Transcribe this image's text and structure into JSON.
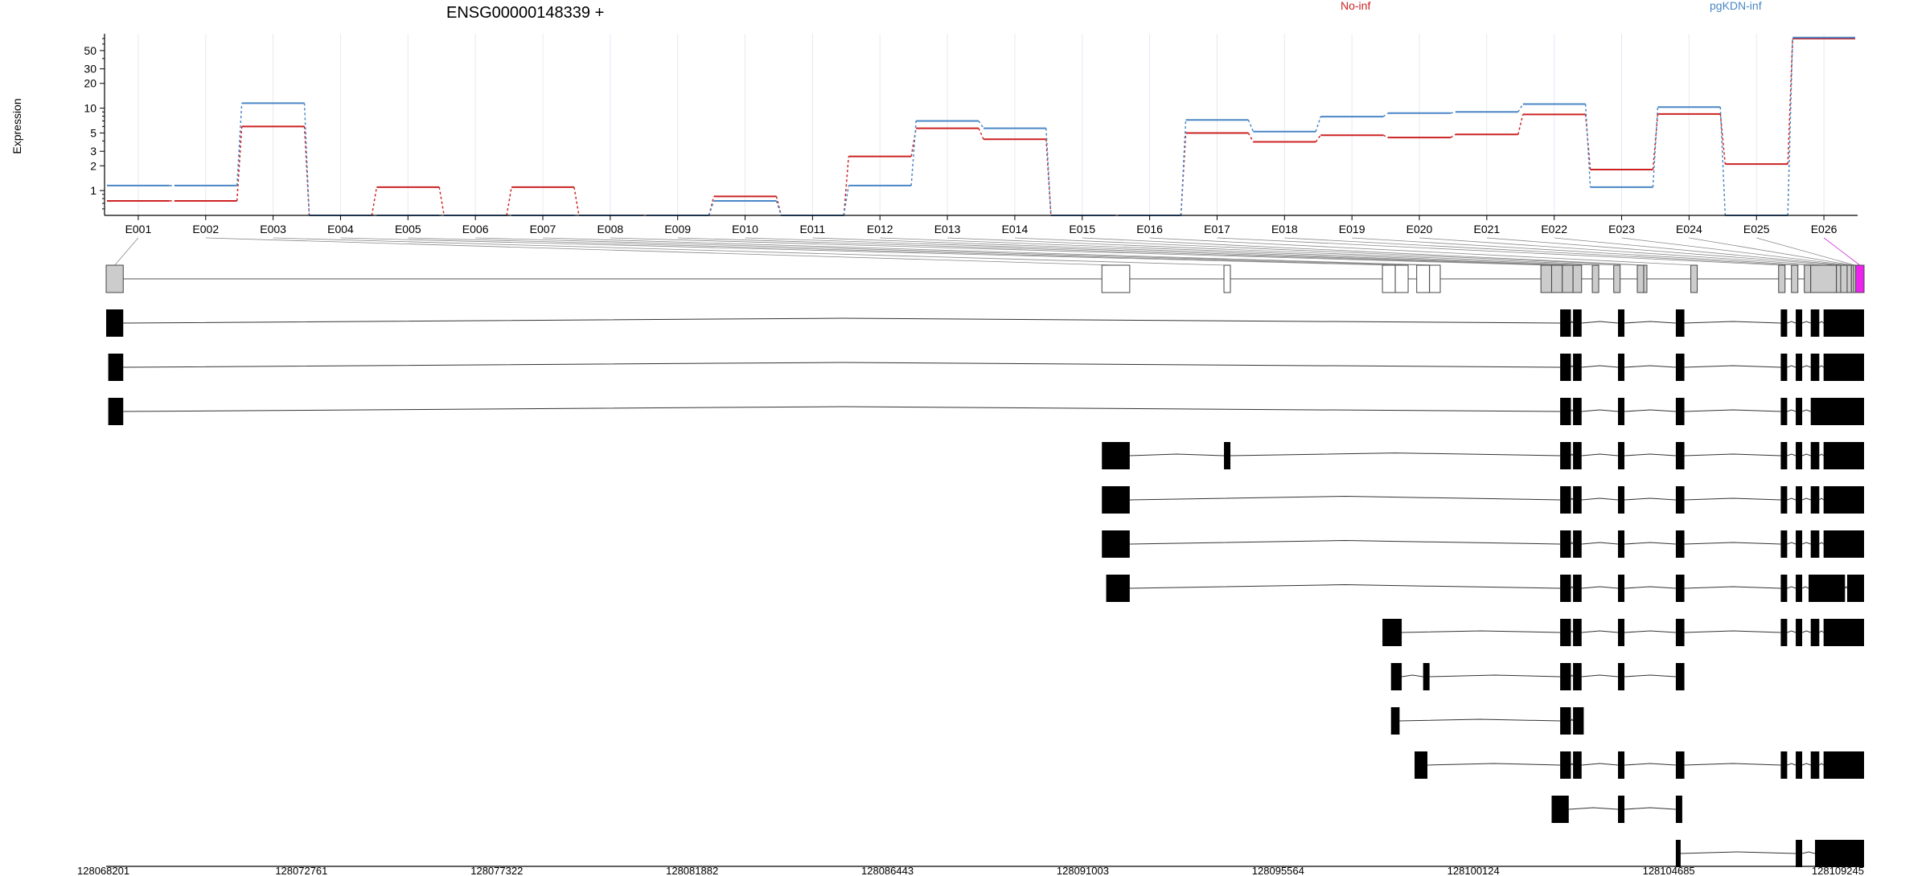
{
  "chart_data": {
    "type": "line",
    "title": "ENSG00000148339 +",
    "ylabel": "Expression",
    "y_scale": "log",
    "y_ticks": [
      "1",
      "2",
      "3",
      "5",
      "10",
      "20",
      "30",
      "50"
    ],
    "ylim": [
      0.5,
      80
    ],
    "categories": [
      "E001",
      "E002",
      "E003",
      "E004",
      "E005",
      "E006",
      "E007",
      "E008",
      "E009",
      "E010",
      "E011",
      "E012",
      "E013",
      "E014",
      "E015",
      "E016",
      "E017",
      "E018",
      "E019",
      "E020",
      "E021",
      "E022",
      "E023",
      "E024",
      "E025",
      "E026"
    ],
    "series": [
      {
        "name": "No-inf",
        "color": "#cc2222",
        "values": [
          0.75,
          0.75,
          6,
          0.5,
          1.1,
          0.5,
          1.1,
          0.5,
          0.5,
          0.85,
          0.5,
          2.6,
          5.7,
          4.2,
          0.5,
          0.5,
          5,
          3.9,
          4.7,
          4.4,
          4.8,
          8.4,
          1.8,
          8.5,
          2.1,
          70
        ]
      },
      {
        "name": "pgKDN-inf",
        "color": "#4a86c5",
        "values": [
          1.15,
          1.15,
          11.5,
          0.5,
          0.5,
          0.5,
          0.5,
          0.5,
          0.5,
          0.75,
          0.5,
          1.15,
          7,
          5.7,
          0.5,
          0.5,
          7.2,
          5.2,
          7.9,
          8.7,
          9,
          11.2,
          1.1,
          10.3,
          0.5,
          72
        ]
      }
    ],
    "x_genomic_ticks": [
      "128068201",
      "128072761",
      "128077322",
      "128081882",
      "128086443",
      "128091003",
      "128095564",
      "128100124",
      "128104685",
      "128109245"
    ],
    "x_genomic_range": [
      128068201,
      128109245
    ],
    "gene_model": {
      "exons": [
        [
          128068201,
          128068600
        ],
        [
          128091450,
          128092100
        ],
        [
          128094300,
          128094450
        ],
        [
          128098000,
          128098300
        ],
        [
          128098300,
          128098600
        ],
        [
          128098800,
          128099100
        ],
        [
          128099100,
          128099350
        ],
        [
          128101700,
          128101950
        ],
        [
          128101950,
          128102200
        ],
        [
          128102200,
          128102450
        ],
        [
          128102450,
          128102650
        ],
        [
          128102900,
          128103050
        ],
        [
          128103400,
          128103550
        ],
        [
          128103950,
          128104100
        ],
        [
          128104100,
          128104150
        ],
        [
          128105200,
          128105350
        ],
        [
          128107250,
          128107400
        ],
        [
          128107550,
          128107700
        ],
        [
          128107850,
          128108000
        ],
        [
          128108000,
          128108600
        ],
        [
          128108600,
          128108700
        ],
        [
          128108700,
          128108850
        ],
        [
          128108850,
          128108950
        ],
        [
          128108950,
          128109000
        ],
        [
          128109000,
          128109050
        ],
        [
          128109050,
          128109245
        ]
      ],
      "highlighted_exon": "E026",
      "highlight_color": "#ee22ee"
    },
    "transcripts": [
      [
        [
          128068201,
          128068600
        ],
        [
          128102150,
          128102400
        ],
        [
          128102450,
          128102650
        ],
        [
          128103500,
          128103650
        ],
        [
          128104850,
          128105050
        ],
        [
          128107300,
          128107450
        ],
        [
          128107650,
          128107800
        ],
        [
          128108000,
          128108200
        ],
        [
          128108300,
          128109245
        ]
      ],
      [
        [
          128068250,
          128068600
        ],
        [
          128102150,
          128102400
        ],
        [
          128102450,
          128102650
        ],
        [
          128103500,
          128103650
        ],
        [
          128104850,
          128105050
        ],
        [
          128107300,
          128107450
        ],
        [
          128107650,
          128107800
        ],
        [
          128108000,
          128108200
        ],
        [
          128108300,
          128109245
        ]
      ],
      [
        [
          128068250,
          128068600
        ],
        [
          128102150,
          128102400
        ],
        [
          128102450,
          128102650
        ],
        [
          128103500,
          128103650
        ],
        [
          128104850,
          128105050
        ],
        [
          128107300,
          128107450
        ],
        [
          128107650,
          128107800
        ],
        [
          128108000,
          128108200
        ],
        [
          128108100,
          128109245
        ]
      ],
      [
        [
          128091450,
          128092100
        ],
        [
          128094300,
          128094450
        ],
        [
          128102150,
          128102400
        ],
        [
          128102450,
          128102650
        ],
        [
          128103500,
          128103650
        ],
        [
          128104850,
          128105050
        ],
        [
          128107300,
          128107450
        ],
        [
          128107650,
          128107800
        ],
        [
          128108000,
          128108200
        ],
        [
          128108300,
          128109245
        ]
      ],
      [
        [
          128091450,
          128092100
        ],
        [
          128102150,
          128102400
        ],
        [
          128102450,
          128102650
        ],
        [
          128103500,
          128103650
        ],
        [
          128104850,
          128105050
        ],
        [
          128107300,
          128107450
        ],
        [
          128107650,
          128107800
        ],
        [
          128108000,
          128108200
        ],
        [
          128108300,
          128109245
        ]
      ],
      [
        [
          128091450,
          128092100
        ],
        [
          128102150,
          128102400
        ],
        [
          128102450,
          128102650
        ],
        [
          128103500,
          128103650
        ],
        [
          128104850,
          128105050
        ],
        [
          128107300,
          128107450
        ],
        [
          128107650,
          128107800
        ],
        [
          128108000,
          128108200
        ],
        [
          128108300,
          128109245
        ]
      ],
      [
        [
          128091550,
          128092100
        ],
        [
          128102150,
          128102400
        ],
        [
          128102450,
          128102650
        ],
        [
          128103500,
          128103650
        ],
        [
          128104850,
          128105050
        ],
        [
          128107300,
          128107450
        ],
        [
          128107650,
          128107800
        ],
        [
          128107950,
          128108800
        ],
        [
          128108850,
          128109245
        ]
      ],
      [
        [
          128098000,
          128098450
        ],
        [
          128102150,
          128102400
        ],
        [
          128102450,
          128102650
        ],
        [
          128103500,
          128103650
        ],
        [
          128104850,
          128105050
        ],
        [
          128107300,
          128107450
        ],
        [
          128107650,
          128107800
        ],
        [
          128108000,
          128108200
        ],
        [
          128108300,
          128109245
        ]
      ],
      [
        [
          128098200,
          128098450
        ],
        [
          128098950,
          128099100
        ],
        [
          128102150,
          128102400
        ],
        [
          128102450,
          128102650
        ],
        [
          128103500,
          128103650
        ],
        [
          128104850,
          128105050
        ]
      ],
      [
        [
          128098200,
          128098400
        ],
        [
          128102150,
          128102400
        ],
        [
          128102450,
          128102700
        ]
      ],
      [
        [
          128098750,
          128099050
        ],
        [
          128102150,
          128102400
        ],
        [
          128102450,
          128102650
        ],
        [
          128103500,
          128103650
        ],
        [
          128104850,
          128105050
        ],
        [
          128107300,
          128107450
        ],
        [
          128107650,
          128107800
        ],
        [
          128108000,
          128108200
        ],
        [
          128108300,
          128109245
        ]
      ],
      [
        [
          128101950,
          128102350
        ],
        [
          128103500,
          128103650
        ],
        [
          128104850,
          128105000
        ]
      ],
      [
        [
          128104850,
          128104950
        ],
        [
          128107650,
          128107800
        ],
        [
          128108100,
          128109245
        ]
      ]
    ]
  }
}
